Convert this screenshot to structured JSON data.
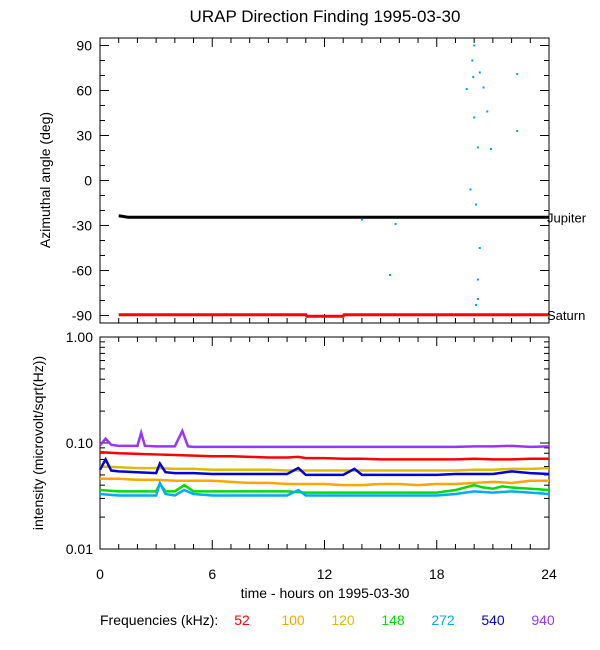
{
  "chart_data": [
    {
      "type": "scatter",
      "title": "URAP Direction Finding  1995-03-30",
      "ylabel": "Azimuthal angle (deg)",
      "xlim": [
        0,
        24
      ],
      "ylim": [
        -95,
        95
      ],
      "yticks": [
        "90",
        "60",
        "30",
        "0",
        "-30",
        "-60",
        "-90"
      ],
      "series": [
        {
          "name": "Jupiter",
          "color": "#000000",
          "kind": "line",
          "x": [
            1.0,
            1.5,
            24.0
          ],
          "y": [
            -23.5,
            -24.5,
            -24.5
          ]
        },
        {
          "name": "Saturn",
          "color": "#ff0000",
          "kind": "line",
          "x": [
            1.0,
            11.0,
            11.05,
            13.0,
            13.05,
            24.0
          ],
          "y": [
            -89.5,
            -89.5,
            -90.5,
            -90.5,
            -89.5,
            -89.5
          ]
        },
        {
          "name": "",
          "color": "#00a0ff",
          "kind": "points",
          "x": [
            20.0,
            19.9,
            19.95,
            20.3,
            20.5,
            19.6,
            22.3,
            20.0,
            20.7,
            20.2,
            20.9,
            22.3,
            19.8,
            20.1,
            14.0,
            15.8,
            20.3,
            15.5,
            20.2,
            20.2,
            20.1
          ],
          "y": [
            90,
            80,
            69,
            72,
            62,
            61,
            71,
            42,
            46,
            22,
            21,
            33,
            -6,
            -16,
            -26,
            -29,
            -45,
            -63,
            -66,
            -79,
            -83
          ]
        }
      ]
    },
    {
      "type": "line",
      "xlabel": "time - hours on 1995-03-30",
      "ylabel": "intensity (microvolt/sqrt(Hz))",
      "yscale": "log",
      "xlim": [
        0,
        24
      ],
      "ylim": [
        0.01,
        1.0
      ],
      "xticks": [
        "0",
        "6",
        "12",
        "18",
        "24"
      ],
      "yticks": [
        "1.00",
        "0.10",
        "0.01"
      ],
      "legend_title": "Frequencies (kHz):",
      "series": [
        {
          "name": "52",
          "color": "#ff0000",
          "x": [
            0,
            1,
            2,
            3,
            4,
            5,
            6,
            7,
            8,
            9,
            10,
            10.6,
            11,
            12,
            13,
            14,
            15,
            16,
            17,
            18,
            19,
            20,
            21,
            22,
            23,
            24
          ],
          "y": [
            0.082,
            0.08,
            0.079,
            0.078,
            0.077,
            0.076,
            0.075,
            0.075,
            0.074,
            0.073,
            0.073,
            0.074,
            0.072,
            0.072,
            0.071,
            0.071,
            0.07,
            0.07,
            0.07,
            0.07,
            0.07,
            0.071,
            0.07,
            0.07,
            0.071,
            0.071
          ]
        },
        {
          "name": "100",
          "color": "#ffa500",
          "x": [
            0,
            1,
            2,
            3,
            4,
            5,
            6,
            7,
            8,
            9,
            10,
            11,
            12,
            13,
            14,
            15,
            16,
            17,
            18,
            19,
            20,
            21,
            22,
            23,
            24
          ],
          "y": [
            0.046,
            0.046,
            0.045,
            0.045,
            0.044,
            0.044,
            0.044,
            0.043,
            0.042,
            0.042,
            0.041,
            0.041,
            0.041,
            0.04,
            0.04,
            0.041,
            0.041,
            0.04,
            0.041,
            0.041,
            0.042,
            0.043,
            0.042,
            0.044,
            0.044
          ]
        },
        {
          "name": "120",
          "color": "#ddbb00",
          "x": [
            0,
            1,
            2,
            3,
            4,
            5,
            6,
            7,
            8,
            9,
            10,
            11,
            12,
            13,
            14,
            15,
            16,
            17,
            18,
            19,
            20,
            21,
            22,
            23,
            24
          ],
          "y": [
            0.06,
            0.059,
            0.058,
            0.058,
            0.057,
            0.057,
            0.056,
            0.056,
            0.056,
            0.056,
            0.055,
            0.055,
            0.055,
            0.055,
            0.055,
            0.055,
            0.055,
            0.055,
            0.055,
            0.055,
            0.056,
            0.056,
            0.057,
            0.057,
            0.058
          ]
        },
        {
          "name": "148",
          "color": "#00dd00",
          "x": [
            0,
            1,
            2,
            3,
            3.2,
            3.5,
            4,
            4.5,
            5,
            6,
            7,
            8,
            9,
            10,
            11,
            12,
            13,
            14,
            15,
            16,
            17,
            18,
            19,
            19.5,
            20,
            20.5,
            21,
            21.5,
            22,
            23,
            24
          ],
          "y": [
            0.036,
            0.035,
            0.035,
            0.035,
            0.041,
            0.035,
            0.035,
            0.04,
            0.035,
            0.035,
            0.035,
            0.035,
            0.035,
            0.035,
            0.034,
            0.034,
            0.034,
            0.034,
            0.034,
            0.034,
            0.034,
            0.034,
            0.036,
            0.038,
            0.04,
            0.038,
            0.037,
            0.039,
            0.038,
            0.037,
            0.036
          ]
        },
        {
          "name": "272",
          "color": "#00aaff",
          "x": [
            0,
            1,
            2,
            3,
            3.2,
            3.5,
            4,
            4.5,
            5,
            6,
            7,
            8,
            9,
            10,
            10.6,
            11,
            12,
            13,
            14,
            15,
            16,
            17,
            18,
            19,
            20,
            21,
            22,
            23,
            24
          ],
          "y": [
            0.033,
            0.032,
            0.032,
            0.032,
            0.042,
            0.033,
            0.032,
            0.036,
            0.033,
            0.032,
            0.032,
            0.032,
            0.032,
            0.032,
            0.036,
            0.032,
            0.032,
            0.032,
            0.032,
            0.032,
            0.032,
            0.032,
            0.032,
            0.033,
            0.035,
            0.034,
            0.035,
            0.034,
            0.033
          ]
        },
        {
          "name": "540",
          "color": "#0000dd",
          "x": [
            0,
            0.3,
            0.6,
            1,
            2,
            3,
            3.2,
            3.5,
            4,
            5,
            6,
            7,
            8,
            9,
            10,
            10.6,
            11,
            12,
            13,
            13.6,
            14,
            15,
            16,
            17,
            18,
            19,
            20,
            21,
            22,
            23,
            24
          ],
          "y": [
            0.056,
            0.07,
            0.055,
            0.054,
            0.053,
            0.052,
            0.064,
            0.053,
            0.052,
            0.052,
            0.051,
            0.051,
            0.051,
            0.051,
            0.051,
            0.058,
            0.05,
            0.05,
            0.05,
            0.057,
            0.05,
            0.05,
            0.05,
            0.05,
            0.05,
            0.051,
            0.051,
            0.051,
            0.054,
            0.052,
            0.051
          ]
        },
        {
          "name": "940",
          "color": "#9933ff",
          "x": [
            0,
            0.3,
            0.6,
            1,
            2,
            2.2,
            2.4,
            3,
            4,
            4.4,
            4.7,
            5,
            6,
            7,
            8,
            9,
            10,
            11,
            12,
            13,
            14,
            15,
            16,
            17,
            18,
            19,
            20,
            21,
            22,
            23,
            24
          ],
          "y": [
            0.095,
            0.11,
            0.096,
            0.094,
            0.094,
            0.125,
            0.094,
            0.093,
            0.093,
            0.13,
            0.093,
            0.092,
            0.092,
            0.092,
            0.092,
            0.092,
            0.092,
            0.092,
            0.092,
            0.092,
            0.092,
            0.092,
            0.092,
            0.092,
            0.092,
            0.092,
            0.093,
            0.093,
            0.094,
            0.092,
            0.093
          ]
        }
      ]
    }
  ]
}
